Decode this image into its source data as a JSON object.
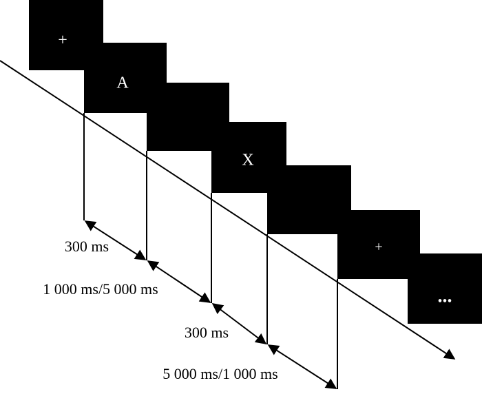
{
  "screen_labels": [
    "+",
    "A",
    "X",
    "+",
    "..."
  ],
  "durations": [
    "300 ms",
    "1 000 ms/5 000 ms",
    "300 ms",
    "5 000 ms/1 000 ms"
  ]
}
